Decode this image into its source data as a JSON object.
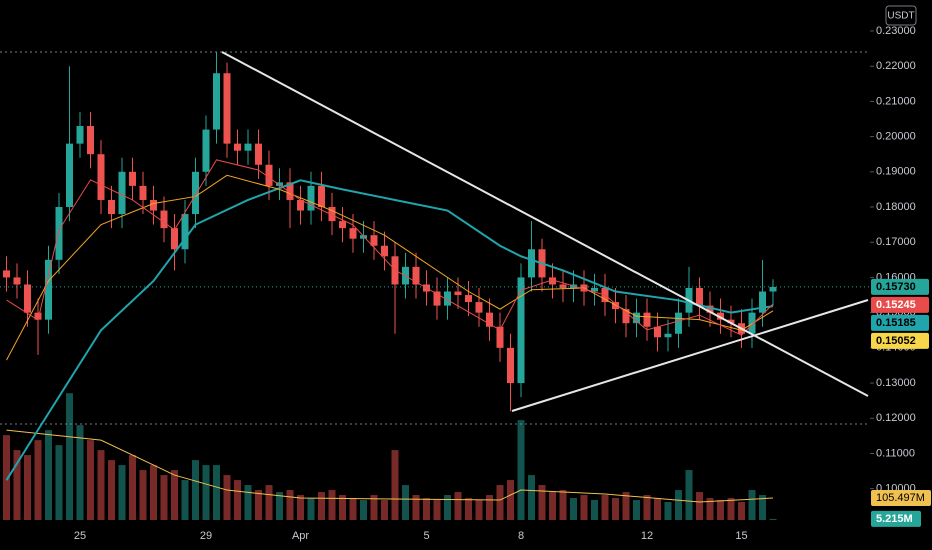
{
  "chart_data": {
    "type": "candlestick",
    "currency": "USDT",
    "categories": [
      null,
      null,
      null,
      null,
      null,
      null,
      null,
      "25",
      null,
      null,
      null,
      null,
      null,
      null,
      null,
      null,
      null,
      null,
      null,
      "29",
      null,
      null,
      null,
      null,
      null,
      null,
      null,
      null,
      "Apr",
      null,
      null,
      null,
      null,
      null,
      null,
      null,
      null,
      null,
      null,
      null,
      "5",
      null,
      null,
      null,
      null,
      null,
      null,
      null,
      null,
      "8",
      null,
      null,
      null,
      null,
      null,
      null,
      null,
      null,
      null,
      null,
      null,
      "12",
      null,
      null,
      null,
      null,
      null,
      null,
      null,
      null,
      "15",
      null,
      null,
      null
    ],
    "open": [
      0.162,
      0.16,
      0.158,
      0.15,
      0.148,
      0.165,
      0.18,
      0.198,
      0.203,
      0.195,
      0.182,
      0.178,
      0.19,
      0.186,
      0.182,
      0.179,
      0.174,
      0.168,
      0.178,
      0.19,
      0.202,
      0.218,
      0.198,
      0.196,
      0.198,
      0.192,
      0.186,
      0.187,
      0.182,
      0.179,
      0.186,
      0.18,
      0.176,
      0.174,
      0.171,
      0.172,
      0.169,
      0.166,
      0.158,
      0.163,
      0.158,
      0.156,
      0.152,
      0.156,
      0.155,
      0.153,
      0.15,
      0.146,
      0.14,
      0.13,
      0.16,
      0.168,
      0.16,
      0.158,
      0.157,
      0.158,
      0.156,
      0.157,
      0.153,
      0.151,
      0.147,
      0.15,
      0.146,
      0.143,
      0.144,
      0.15,
      0.157,
      0.152,
      0.15,
      0.148,
      0.147,
      0.144,
      0.15,
      0.156
    ],
    "high": [
      0.166,
      0.164,
      0.162,
      0.154,
      0.169,
      0.184,
      0.22,
      0.207,
      0.207,
      0.199,
      0.186,
      0.194,
      0.194,
      0.19,
      0.186,
      0.183,
      0.178,
      0.182,
      0.194,
      0.206,
      0.224,
      0.221,
      0.202,
      0.202,
      0.202,
      0.196,
      0.191,
      0.191,
      0.186,
      0.19,
      0.19,
      0.184,
      0.18,
      0.178,
      0.176,
      0.176,
      0.173,
      0.17,
      0.167,
      0.167,
      0.162,
      0.16,
      0.16,
      0.16,
      0.159,
      0.157,
      0.154,
      0.15,
      0.144,
      0.164,
      0.176,
      0.171,
      0.164,
      0.162,
      0.162,
      0.162,
      0.161,
      0.161,
      0.157,
      0.155,
      0.154,
      0.154,
      0.15,
      0.148,
      0.154,
      0.163,
      0.16,
      0.156,
      0.154,
      0.152,
      0.151,
      0.154,
      0.165,
      0.1595
    ],
    "low": [
      0.156,
      0.154,
      0.146,
      0.138,
      0.144,
      0.161,
      0.176,
      0.194,
      0.191,
      0.178,
      0.174,
      0.174,
      0.182,
      0.178,
      0.175,
      0.17,
      0.162,
      0.164,
      0.174,
      0.186,
      0.198,
      0.194,
      0.192,
      0.192,
      0.188,
      0.182,
      0.182,
      0.174,
      0.175,
      0.175,
      0.176,
      0.172,
      0.17,
      0.167,
      0.167,
      0.165,
      0.162,
      0.144,
      0.154,
      0.154,
      0.152,
      0.148,
      0.148,
      0.151,
      0.149,
      0.146,
      0.142,
      0.136,
      0.122,
      0.126,
      0.156,
      0.156,
      0.154,
      0.153,
      0.153,
      0.152,
      0.152,
      0.149,
      0.147,
      0.143,
      0.143,
      0.142,
      0.139,
      0.139,
      0.14,
      0.146,
      0.148,
      0.146,
      0.144,
      0.143,
      0.14,
      0.14,
      0.146,
      0.152
    ],
    "close": [
      0.16,
      0.158,
      0.15,
      0.148,
      0.165,
      0.18,
      0.198,
      0.203,
      0.195,
      0.182,
      0.178,
      0.19,
      0.186,
      0.182,
      0.179,
      0.174,
      0.168,
      0.178,
      0.19,
      0.202,
      0.218,
      0.198,
      0.196,
      0.198,
      0.192,
      0.186,
      0.187,
      0.182,
      0.179,
      0.186,
      0.18,
      0.176,
      0.174,
      0.171,
      0.172,
      0.169,
      0.166,
      0.158,
      0.163,
      0.158,
      0.156,
      0.152,
      0.156,
      0.155,
      0.153,
      0.15,
      0.146,
      0.14,
      0.13,
      0.16,
      0.168,
      0.16,
      0.158,
      0.157,
      0.158,
      0.156,
      0.157,
      0.153,
      0.151,
      0.147,
      0.15,
      0.146,
      0.143,
      0.144,
      0.15,
      0.157,
      0.152,
      0.15,
      0.148,
      0.147,
      0.144,
      0.15,
      0.156,
      0.1573
    ],
    "last_label": "0.15730",
    "up_color": "#26a69a",
    "down_color": "#ef5350",
    "ylim": [
      0.0911,
      0.2388
    ],
    "yticks": [
      {
        "value": 0.23,
        "label": "0.23000"
      },
      {
        "value": 0.22,
        "label": "0.22000"
      },
      {
        "value": 0.21,
        "label": "0.21000"
      },
      {
        "value": 0.2,
        "label": "0.20000"
      },
      {
        "value": 0.19,
        "label": "0.19000"
      },
      {
        "value": 0.18,
        "label": "0.18000"
      },
      {
        "value": 0.17,
        "label": "0.17000"
      },
      {
        "value": 0.16,
        "label": "0.16000"
      },
      {
        "value": 0.15,
        "label": "0.15000"
      },
      {
        "value": 0.14,
        "label": "0.14000"
      },
      {
        "value": 0.13,
        "label": "0.13000"
      },
      {
        "value": 0.12,
        "label": "0.12000"
      },
      {
        "value": 0.11,
        "label": "0.11000"
      },
      {
        "value": 0.1,
        "label": "0.10000"
      }
    ],
    "series": [
      {
        "color": "#1fa5ab",
        "x": [
          0,
          3,
          9,
          14,
          18,
          23,
          28,
          32,
          37,
          42,
          47,
          49,
          53,
          58,
          64,
          69,
          73
        ],
        "values": [
          0.1024,
          0.1167,
          0.145,
          0.159,
          0.175,
          0.182,
          0.1876,
          0.185,
          0.182,
          0.179,
          0.169,
          0.166,
          0.162,
          0.156,
          0.1535,
          0.15,
          0.15185
        ],
        "last_label": "0.15185",
        "tag_text": "#000000"
      },
      {
        "color": "#f5a623",
        "x": [
          0,
          4,
          9,
          14,
          18,
          21,
          26,
          31,
          36,
          39,
          44,
          47,
          50,
          55,
          60,
          66,
          70,
          73
        ],
        "values": [
          0.1365,
          0.159,
          0.175,
          0.181,
          0.183,
          0.189,
          0.185,
          0.179,
          0.172,
          0.166,
          0.156,
          0.151,
          0.1565,
          0.157,
          0.149,
          0.148,
          0.145,
          0.15052
        ],
        "last_label": "0.15052",
        "tag_color": "#f7d64a",
        "tag_text": "#000000"
      },
      {
        "color": "#e94b4b",
        "x": [
          0,
          3,
          5,
          8,
          12,
          16,
          20,
          24,
          28,
          33,
          37,
          42,
          47,
          49,
          52,
          57,
          61,
          66,
          70,
          73
        ],
        "values": [
          0.1536,
          0.1479,
          0.1735,
          0.1877,
          0.182,
          0.1735,
          0.1934,
          0.1905,
          0.182,
          0.1749,
          0.1621,
          0.1536,
          0.1451,
          0.1564,
          0.1593,
          0.155,
          0.1451,
          0.1493,
          0.1436,
          0.15245
        ],
        "last_label": "0.15245",
        "tag_text": "#ffffff"
      }
    ],
    "y2lim": [
      0,
      2500000000
    ],
    "volume": {
      "axis": "y2",
      "values": [
        408000000,
        336000000,
        312000000,
        384000000,
        432000000,
        360000000,
        609600000,
        456000000,
        384000000,
        336000000,
        288000000,
        264000000,
        312000000,
        240000000,
        264000000,
        216000000,
        240000000,
        192000000,
        288000000,
        264000000,
        264000000,
        216000000,
        192000000,
        168000000,
        144000000,
        168000000,
        134400000,
        144000000,
        120000000,
        105600000,
        134400000,
        144000000,
        120000000,
        105600000,
        96000000,
        120000000,
        96000000,
        336000000,
        168000000,
        120000000,
        105600000,
        96000000,
        120000000,
        134400000,
        105600000,
        96000000,
        120000000,
        168000000,
        192000000,
        480000000,
        216000000,
        168000000,
        134400000,
        144000000,
        105600000,
        120000000,
        96000000,
        120000000,
        105600000,
        134400000,
        96000000,
        120000000,
        105600000,
        86400000,
        144000000,
        240000000,
        134400000,
        105600000,
        96000000,
        105600000,
        86400000,
        144000000,
        120000000,
        5215000
      ],
      "last_label": "5.215M",
      "ma": {
        "color": "#f0c050",
        "x": [
          0,
          9,
          16,
          21,
          28,
          47,
          49,
          57,
          66,
          73
        ],
        "values": [
          432000000,
          384000000,
          216000000,
          144000000,
          105600000,
          96000000,
          144000000,
          125000000,
          86400000,
          105497000
        ],
        "last_label": "105.497M"
      }
    }
  }
}
